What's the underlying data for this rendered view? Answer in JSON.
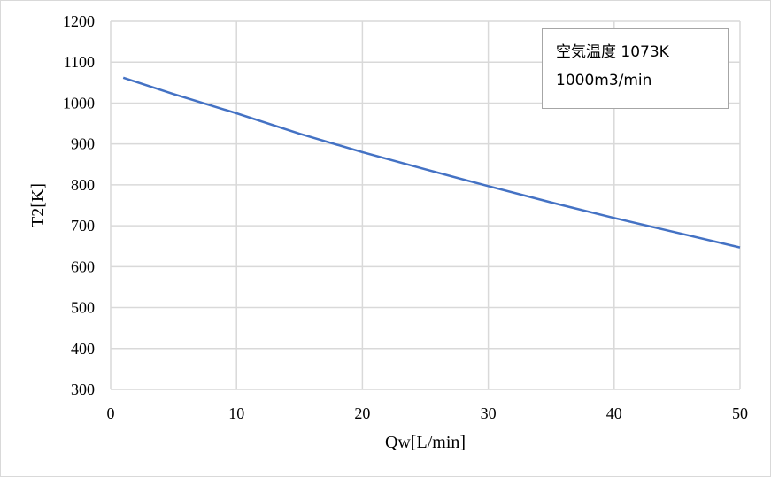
{
  "chart_data": {
    "type": "line",
    "xlabel": "Qw[L/min]",
    "ylabel": "T2[K]",
    "xlim": [
      0,
      50
    ],
    "ylim": [
      300,
      1200
    ],
    "xticks": [
      0,
      10,
      20,
      30,
      40,
      50
    ],
    "yticks": [
      300,
      400,
      500,
      600,
      700,
      800,
      900,
      1000,
      1100,
      1200
    ],
    "grid": true,
    "series": [
      {
        "color": "#4472c4",
        "x": [
          1,
          5,
          10,
          15,
          20,
          25,
          30,
          35,
          40,
          45,
          50
        ],
        "y": [
          1062,
          1022,
          975,
          925,
          880,
          838,
          797,
          757,
          719,
          683,
          647
        ]
      }
    ],
    "annotation": [
      "空気温度 1073K",
      "1000m3/min"
    ]
  }
}
